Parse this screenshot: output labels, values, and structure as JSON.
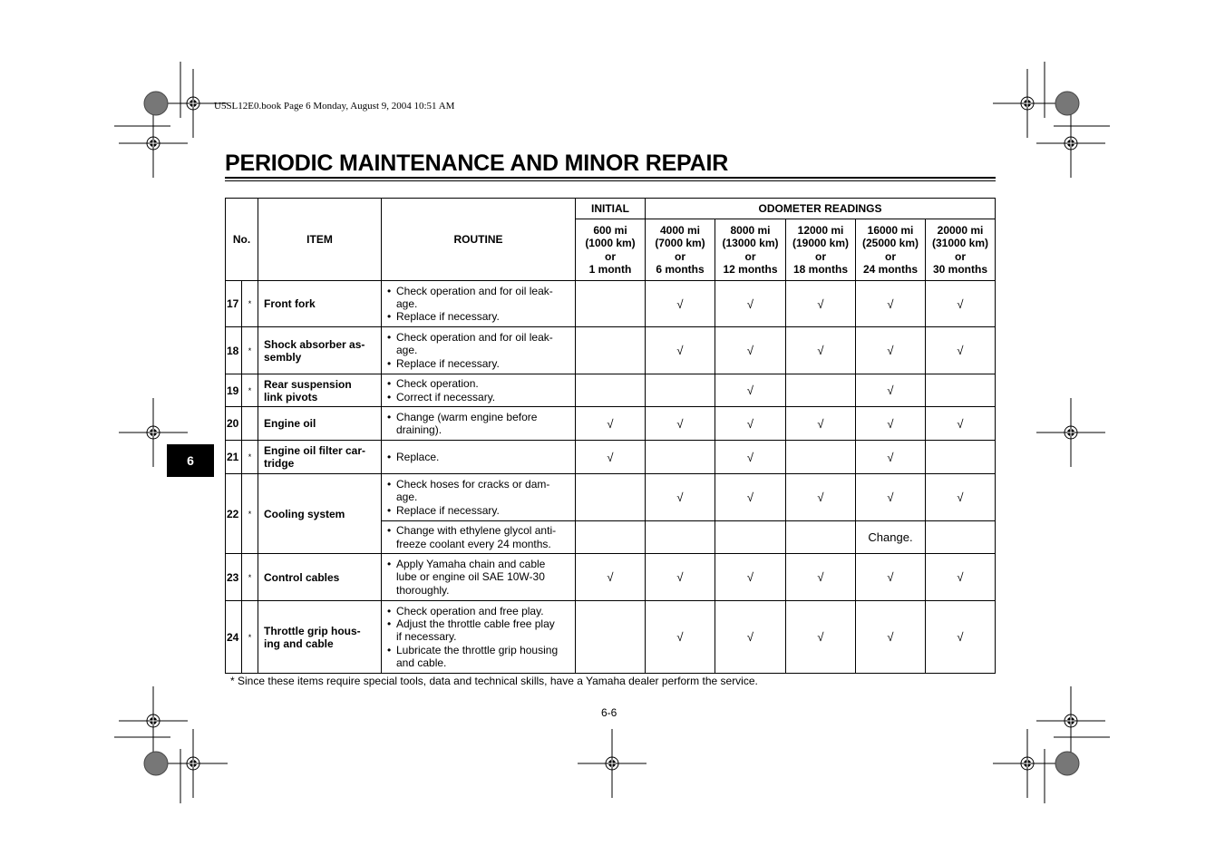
{
  "header": {
    "book_line": "U5SL12E0.book  Page 6  Monday, August 9, 2004  10:51 AM",
    "title": "PERIODIC MAINTENANCE AND MINOR REPAIR",
    "chapter_tab": "6"
  },
  "table": {
    "headers": {
      "no": "No.",
      "item": "ITEM",
      "routine": "ROUTINE",
      "initial": "INITIAL",
      "odometer": "ODOMETER READINGS",
      "intervals": [
        [
          "600 mi",
          "(1000 km)",
          "or",
          "1 month"
        ],
        [
          "4000 mi",
          "(7000 km)",
          "or",
          "6 months"
        ],
        [
          "8000 mi",
          "(13000 km)",
          "or",
          "12 months"
        ],
        [
          "12000 mi",
          "(19000 km)",
          "or",
          "18 months"
        ],
        [
          "16000 mi",
          "(25000 km)",
          "or",
          "24 months"
        ],
        [
          "20000 mi",
          "(31000 km)",
          "or",
          "30 months"
        ]
      ]
    },
    "check_mark": "√",
    "rows": [
      {
        "no": "17",
        "star": "*",
        "item": "Front fork",
        "subrows": [
          {
            "routine": [
              "Check operation and for oil leak-\nage.",
              "Replace if necessary."
            ],
            "cells": [
              "",
              "√",
              "√",
              "√",
              "√",
              "√"
            ]
          }
        ]
      },
      {
        "no": "18",
        "star": "*",
        "item": "Shock absorber as-\nsembly",
        "subrows": [
          {
            "routine": [
              "Check operation and for oil leak-\nage.",
              "Replace if necessary."
            ],
            "cells": [
              "",
              "√",
              "√",
              "√",
              "√",
              "√"
            ]
          }
        ]
      },
      {
        "no": "19",
        "star": "*",
        "item": "Rear suspension\nlink pivots",
        "subrows": [
          {
            "routine": [
              "Check operation.",
              "Correct if necessary."
            ],
            "cells": [
              "",
              "",
              "√",
              "",
              "√",
              ""
            ]
          }
        ]
      },
      {
        "no": "20",
        "star": "",
        "item": "Engine oil",
        "subrows": [
          {
            "routine": [
              "Change (warm engine before\ndraining)."
            ],
            "cells": [
              "√",
              "√",
              "√",
              "√",
              "√",
              "√"
            ]
          }
        ]
      },
      {
        "no": "21",
        "star": "*",
        "item": "Engine oil filter car-\ntridge",
        "subrows": [
          {
            "routine": [
              "Replace."
            ],
            "cells": [
              "√",
              "",
              "√",
              "",
              "√",
              ""
            ]
          }
        ]
      },
      {
        "no": "22",
        "star": "*",
        "item": "Cooling system",
        "subrows": [
          {
            "routine": [
              "Check hoses for cracks or dam-\nage.",
              "Replace if necessary."
            ],
            "cells": [
              "",
              "√",
              "√",
              "√",
              "√",
              "√"
            ]
          },
          {
            "routine": [
              "Change with ethylene glycol anti-\nfreeze coolant every 24 months."
            ],
            "cells": [
              "",
              "",
              "",
              "",
              "Change.",
              ""
            ]
          }
        ]
      },
      {
        "no": "23",
        "star": "*",
        "item": "Control cables",
        "subrows": [
          {
            "routine": [
              "Apply Yamaha chain and cable\nlube or engine oil SAE 10W-30\nthoroughly."
            ],
            "cells": [
              "√",
              "√",
              "√",
              "√",
              "√",
              "√"
            ]
          }
        ]
      },
      {
        "no": "24",
        "star": "*",
        "item": "Throttle grip hous-\ning and cable",
        "subrows": [
          {
            "routine": [
              "Check operation and free play.",
              "Adjust the throttle cable free play\nif necessary.",
              "Lubricate the throttle grip housing\nand cable."
            ],
            "cells": [
              "",
              "√",
              "√",
              "√",
              "√",
              "√"
            ]
          }
        ]
      }
    ]
  },
  "footnote": "*  Since these items require special tools, data and technical skills, have a Yamaha dealer perform the service.",
  "page_number": "6-6"
}
